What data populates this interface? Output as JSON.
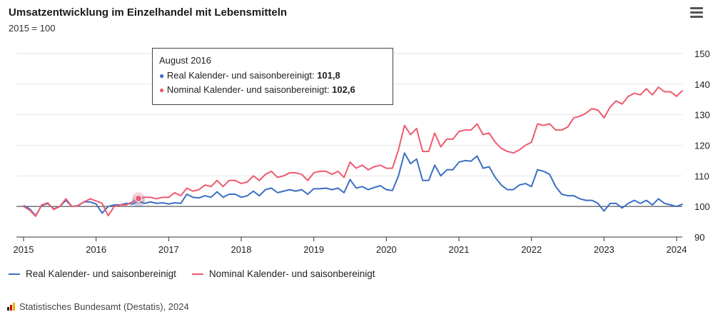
{
  "header": {
    "title": "Umsatzentwicklung im Einzelhandel mit Lebensmitteln",
    "subtitle": "2015 = 100"
  },
  "tooltip": {
    "date": "August 2016",
    "rows": [
      {
        "label": "Real Kalender- und saisonbereinigt",
        "value": "101,8",
        "color": "#3b6fc4"
      },
      {
        "label": "Nominal Kalender- und saisonbereinigt",
        "value": "102,6",
        "color": "#ef5a6f"
      }
    ]
  },
  "legend": [
    {
      "label": "Real Kalender- und saisonbereinigt",
      "color": "#3b6fc4"
    },
    {
      "label": "Nominal Kalender- und saisonbereinigt",
      "color": "#ef5a6f"
    }
  ],
  "credits": "Statistisches Bundesamt (Destatis), 2024",
  "chart_data": {
    "type": "line",
    "x_start": "2015-01",
    "x_ticks": [
      "2015",
      "2016",
      "2017",
      "2018",
      "2019",
      "2020",
      "2021",
      "2022",
      "2023",
      "2024"
    ],
    "ylim": [
      90,
      150
    ],
    "y_ticks": [
      90,
      100,
      110,
      120,
      130,
      140,
      150
    ],
    "y_axis_side": "right",
    "reference_line": 100,
    "highlight": {
      "month": "2016-08"
    },
    "series": [
      {
        "name": "Real Kalender- und saisonbereinigt",
        "color": "#3b6fc4",
        "values": [
          100.3,
          99.2,
          97.0,
          100.3,
          101.0,
          99.2,
          100.0,
          102.0,
          100.0,
          100.3,
          101.5,
          101.5,
          100.8,
          97.8,
          100.0,
          100.5,
          100.5,
          101.0,
          100.8,
          101.8,
          101.0,
          101.5,
          101.0,
          101.2,
          100.8,
          101.2,
          101.0,
          104.0,
          103.0,
          102.8,
          103.5,
          103.0,
          104.8,
          103.0,
          104.0,
          104.0,
          103.0,
          103.5,
          105.0,
          103.5,
          105.5,
          106.0,
          104.5,
          105.0,
          105.5,
          105.0,
          105.5,
          104.0,
          105.8,
          105.8,
          106.0,
          105.5,
          106.0,
          104.5,
          108.8,
          106.0,
          106.5,
          105.5,
          106.2,
          106.8,
          105.5,
          105.2,
          110.0,
          117.5,
          114.0,
          115.5,
          108.5,
          108.5,
          113.5,
          110.0,
          112.0,
          112.0,
          114.5,
          115.0,
          114.8,
          116.5,
          112.5,
          113.0,
          109.5,
          107.0,
          105.5,
          105.5,
          107.0,
          107.5,
          106.5,
          112.0,
          111.5,
          110.5,
          106.5,
          104.0,
          103.5,
          103.5,
          102.5,
          102.0,
          102.0,
          101.0,
          98.5,
          101.0,
          101.0,
          99.5,
          101.0,
          102.0,
          101.0,
          102.0,
          100.5,
          102.5,
          101.0,
          100.5,
          100.0,
          100.8
        ]
      },
      {
        "name": "Nominal Kalender- und saisonbereinigt",
        "color": "#ef5a6f",
        "values": [
          100.0,
          98.8,
          96.8,
          100.5,
          101.2,
          99.0,
          100.0,
          102.5,
          100.0,
          100.2,
          101.5,
          102.5,
          101.8,
          101.0,
          97.0,
          100.0,
          100.5,
          100.5,
          101.5,
          102.6,
          103.0,
          103.0,
          102.5,
          103.0,
          103.0,
          104.5,
          103.5,
          106.0,
          105.0,
          105.5,
          107.0,
          106.5,
          108.5,
          106.5,
          108.5,
          108.5,
          107.5,
          108.0,
          110.0,
          108.5,
          110.5,
          111.5,
          109.5,
          110.0,
          111.0,
          111.0,
          110.5,
          108.5,
          111.0,
          111.5,
          111.5,
          110.5,
          111.5,
          109.5,
          114.5,
          112.5,
          113.5,
          112.0,
          113.0,
          113.5,
          112.5,
          112.5,
          118.5,
          126.5,
          123.5,
          125.5,
          118.0,
          118.0,
          124.0,
          119.5,
          122.0,
          122.0,
          124.5,
          125.0,
          125.0,
          127.0,
          123.5,
          124.0,
          121.0,
          119.0,
          118.0,
          117.5,
          118.5,
          120.0,
          121.0,
          127.0,
          126.5,
          127.0,
          125.0,
          125.0,
          126.0,
          129.0,
          129.5,
          130.5,
          132.0,
          131.5,
          129.0,
          132.5,
          134.5,
          133.5,
          136.0,
          137.0,
          136.5,
          138.5,
          136.5,
          139.0,
          137.5,
          137.5,
          136.0,
          138.0
        ]
      }
    ]
  }
}
